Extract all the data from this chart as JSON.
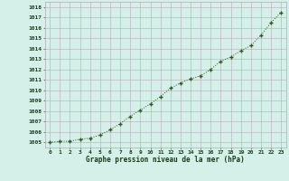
{
  "x": [
    0,
    1,
    2,
    3,
    4,
    5,
    6,
    7,
    8,
    9,
    10,
    11,
    12,
    13,
    14,
    15,
    16,
    17,
    18,
    19,
    20,
    21,
    22,
    23
  ],
  "y": [
    1005.0,
    1005.1,
    1005.1,
    1005.3,
    1005.4,
    1005.7,
    1006.2,
    1006.8,
    1007.5,
    1008.1,
    1008.7,
    1009.4,
    1010.2,
    1010.7,
    1011.1,
    1011.4,
    1012.0,
    1012.8,
    1013.2,
    1013.8,
    1014.3,
    1015.3,
    1016.5,
    1017.5
  ],
  "line_color": "#2d5a1b",
  "marker": "+",
  "marker_size": 3,
  "marker_linewidth": 1.0,
  "bg_color": "#d4f0e8",
  "grid_color": "#b8a8b8",
  "xlabel": "Graphe pression niveau de la mer (hPa)",
  "xlabel_color": "#1a3a1a",
  "tick_color": "#1a3a1a",
  "ylim": [
    1004.5,
    1018.5
  ],
  "xlim": [
    -0.5,
    23.5
  ],
  "yticks": [
    1005,
    1006,
    1007,
    1008,
    1009,
    1010,
    1011,
    1012,
    1013,
    1014,
    1015,
    1016,
    1017,
    1018
  ],
  "xticks": [
    0,
    1,
    2,
    3,
    4,
    5,
    6,
    7,
    8,
    9,
    10,
    11,
    12,
    13,
    14,
    15,
    16,
    17,
    18,
    19,
    20,
    21,
    22,
    23
  ],
  "xtick_labels": [
    "0",
    "1",
    "2",
    "3",
    "4",
    "5",
    "6",
    "7",
    "8",
    "9",
    "10",
    "11",
    "12",
    "13",
    "14",
    "15",
    "16",
    "17",
    "18",
    "19",
    "20",
    "21",
    "22",
    "23"
  ],
  "ytick_labels": [
    "1005",
    "1006",
    "1007",
    "1008",
    "1009",
    "1010",
    "1011",
    "1012",
    "1013",
    "1014",
    "1015",
    "1016",
    "1017",
    "1018"
  ],
  "font_size_ticks": 4.5,
  "font_size_xlabel": 5.5,
  "linewidth": 0.7,
  "linestyle": "dotted"
}
